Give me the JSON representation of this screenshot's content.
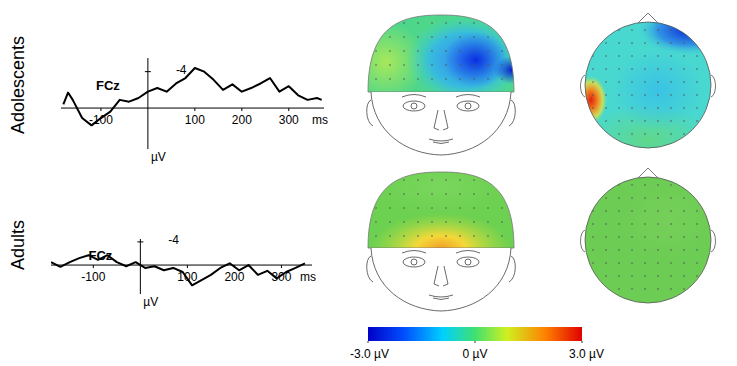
{
  "rows": [
    "Adolescents",
    "Adults"
  ],
  "chart_data": [
    {
      "type": "line",
      "title": "FCz",
      "x_label": "ms",
      "y_label": "µV",
      "x": [
        -180,
        -170,
        -160,
        -140,
        -120,
        -100,
        -80,
        -60,
        -40,
        -20,
        0,
        20,
        40,
        60,
        80,
        100,
        120,
        140,
        160,
        180,
        200,
        220,
        240,
        260,
        280,
        300,
        320,
        340,
        360,
        370
      ],
      "values": [
        -0.4,
        -1.7,
        -0.9,
        1.1,
        1.9,
        1.1,
        0.4,
        -0.9,
        -0.7,
        -1.1,
        -1.8,
        -2.2,
        -1.8,
        -2.7,
        -3.3,
        -4.4,
        -4.0,
        -3.1,
        -2.0,
        -2.6,
        -1.8,
        -2.2,
        -2.7,
        -3.3,
        -1.8,
        -2.4,
        -1.4,
        -0.9,
        -1.1,
        -0.9
      ],
      "color": "#000000",
      "xlim": [
        -185,
        375
      ],
      "ylim": [
        4.5,
        -5.5
      ],
      "xticks": [
        -100,
        100,
        200,
        300
      ],
      "yticks": [
        -4
      ],
      "grid": false
    },
    {
      "type": "line",
      "title": "FCz",
      "x_label": "ms",
      "y_label": "µV",
      "x": [
        -190,
        -170,
        -150,
        -130,
        -110,
        -90,
        -70,
        -50,
        -30,
        -10,
        10,
        30,
        50,
        70,
        90,
        110,
        130,
        150,
        170,
        190,
        210,
        230,
        250,
        270,
        290,
        310,
        330,
        350
      ],
      "values": [
        -0.5,
        0.3,
        -0.5,
        -1.2,
        -1.7,
        -0.9,
        -1.7,
        -0.5,
        0.2,
        -0.5,
        0.5,
        0.2,
        0.9,
        0.5,
        1.2,
        3.5,
        2.6,
        1.7,
        0.5,
        -0.3,
        0.9,
        0,
        1.7,
        1.0,
        2.3,
        1.2,
        0.5,
        -0.3
      ],
      "color": "#000000",
      "xlim": [
        -190,
        365
      ],
      "ylim": [
        5,
        -4.5
      ],
      "xticks": [
        -100,
        100,
        200,
        300
      ],
      "yticks": [
        -4
      ],
      "grid": false
    }
  ],
  "colorbar": {
    "range": [
      -3,
      3
    ],
    "ticks": [
      {
        "value": -3,
        "label": "-3.0 µV"
      },
      {
        "value": 0,
        "label": "0 µV"
      },
      {
        "value": 3,
        "label": "3.0 µV"
      }
    ]
  }
}
